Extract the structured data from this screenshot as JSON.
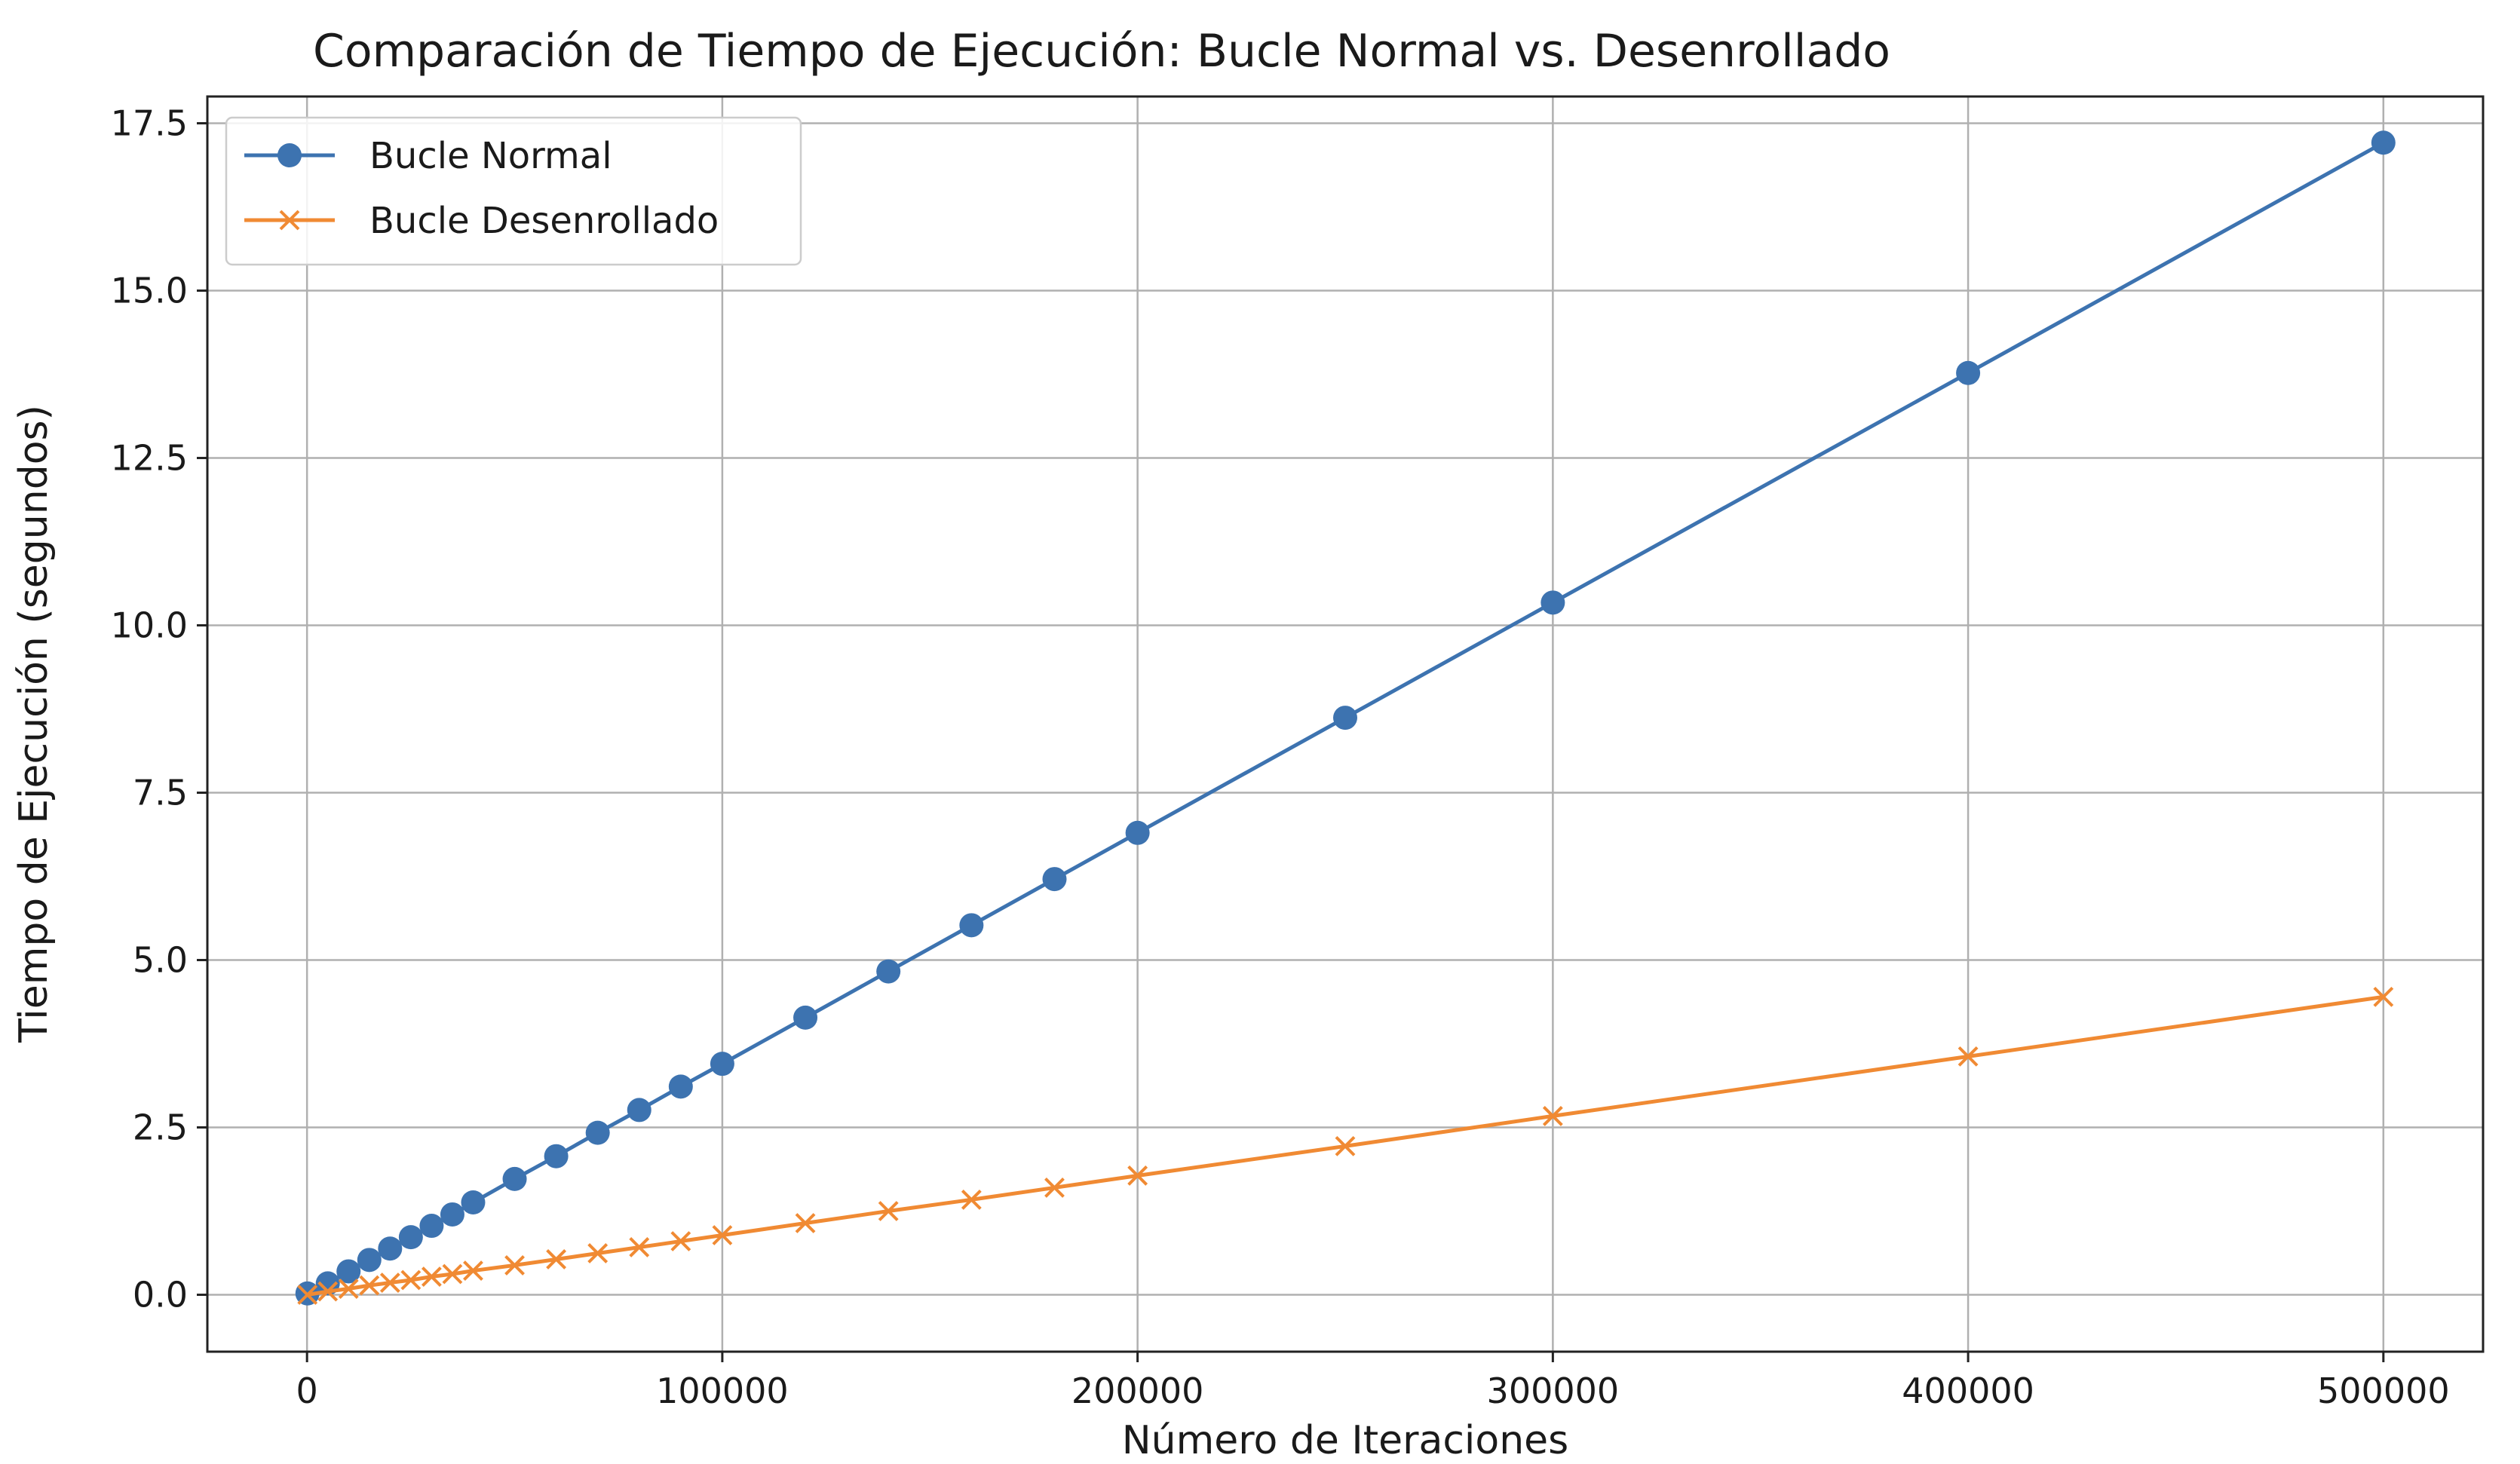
{
  "chart_data": {
    "type": "line",
    "title": "Comparación de Tiempo de Ejecución: Bucle Normal vs. Desenrollado",
    "xlabel": "Número de Iteraciones",
    "ylabel": "Tiempo de Ejecución (segundos)",
    "xlim": [
      -24000,
      524000
    ],
    "ylim": [
      -0.85,
      17.9
    ],
    "xticks": [
      0,
      100000,
      200000,
      300000,
      400000,
      500000
    ],
    "xtick_labels": [
      "0",
      "100000",
      "200000",
      "300000",
      "400000",
      "500000"
    ],
    "yticks": [
      0,
      2.5,
      5,
      7.5,
      10,
      12.5,
      15,
      17.5
    ],
    "ytick_labels": [
      "0.0",
      "2.5",
      "5.0",
      "7.5",
      "10.0",
      "12.5",
      "15.0",
      "17.5"
    ],
    "grid": true,
    "legend_position": "upper-left",
    "x": [
      100,
      5000,
      10000,
      15000,
      20000,
      25000,
      30000,
      35000,
      40000,
      50000,
      60000,
      70000,
      80000,
      90000,
      100000,
      120000,
      140000,
      160000,
      180000,
      200000,
      250000,
      300000,
      400000,
      500000
    ],
    "series": [
      {
        "name": "Bucle Normal",
        "color": "#3d73b0",
        "marker": "circle",
        "values": [
          0.02,
          0.17,
          0.35,
          0.52,
          0.69,
          0.86,
          1.03,
          1.2,
          1.38,
          1.73,
          2.07,
          2.42,
          2.76,
          3.11,
          3.45,
          4.14,
          4.83,
          5.52,
          6.21,
          6.9,
          8.62,
          10.34,
          13.77,
          17.21
        ]
      },
      {
        "name": "Bucle Desenrollado",
        "color": "#f08a33",
        "marker": "x",
        "values": [
          0.0,
          0.05,
          0.09,
          0.14,
          0.18,
          0.22,
          0.27,
          0.31,
          0.36,
          0.44,
          0.53,
          0.62,
          0.71,
          0.8,
          0.89,
          1.07,
          1.25,
          1.42,
          1.6,
          1.78,
          2.22,
          2.67,
          3.56,
          4.45
        ]
      }
    ]
  }
}
